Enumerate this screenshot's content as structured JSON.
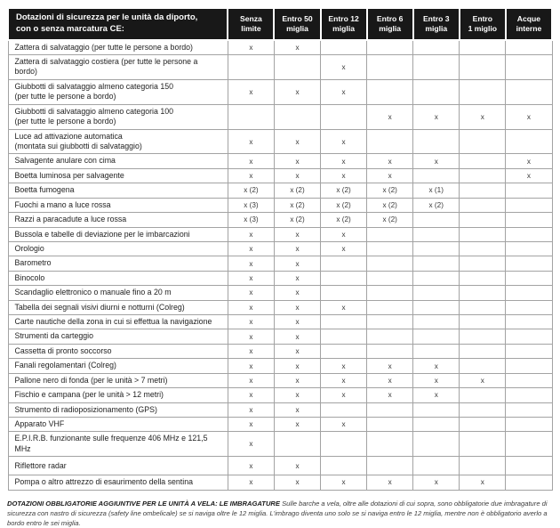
{
  "table": {
    "title_line1": "Dotazioni di sicurezza per le unità da diporto,",
    "title_line2": "con o senza marcatura CE:",
    "columns": [
      {
        "line1": "Senza",
        "line2": "limite"
      },
      {
        "line1": "Entro 50",
        "line2": "miglia"
      },
      {
        "line1": "Entro 12",
        "line2": "miglia"
      },
      {
        "line1": "Entro 6",
        "line2": "miglia"
      },
      {
        "line1": "Entro 3",
        "line2": "miglia"
      },
      {
        "line1": "Entro",
        "line2": "1 miglio"
      },
      {
        "line1": "Acque",
        "line2": "interne"
      }
    ],
    "rows": [
      {
        "label": "Zattera di salvataggio  (per tutte le persone a bordo)",
        "marks": [
          "x",
          "x",
          "",
          "",
          "",
          "",
          ""
        ]
      },
      {
        "label": "Zattera di salvataggio costiera  (per tutte le persone a bordo)",
        "marks": [
          "",
          "",
          "x",
          "",
          "",
          "",
          ""
        ]
      },
      {
        "label": "Giubbotti di salvataggio almeno categoria 150",
        "label2": "(per tutte le persone a bordo)",
        "marks": [
          "x",
          "x",
          "x",
          "",
          "",
          "",
          ""
        ]
      },
      {
        "label": "Giubbotti di salvataggio almeno categoria 100",
        "label2": "(per tutte le persone a bordo)",
        "marks": [
          "",
          "",
          "",
          "x",
          "x",
          "x",
          "x"
        ]
      },
      {
        "label": "Luce ad attivazione automatica",
        "label2": "(montata sui giubbotti di salvataggio)",
        "marks": [
          "x",
          "x",
          "x",
          "",
          "",
          "",
          ""
        ]
      },
      {
        "label": "Salvagente anulare con cima",
        "marks": [
          "x",
          "x",
          "x",
          "x",
          "x",
          "",
          "x"
        ]
      },
      {
        "label": "Boetta luminosa per salvagente",
        "marks": [
          "x",
          "x",
          "x",
          "x",
          "",
          "",
          "x"
        ]
      },
      {
        "label": "Boetta fumogena",
        "marks": [
          "x (2)",
          "x (2)",
          "x (2)",
          "x (2)",
          "x (1)",
          "",
          ""
        ]
      },
      {
        "label": "Fuochi a mano a luce rossa",
        "marks": [
          "x (3)",
          "x (2)",
          "x (2)",
          "x (2)",
          "x (2)",
          "",
          ""
        ]
      },
      {
        "label": "Razzi a paracadute a luce rossa",
        "marks": [
          "x (3)",
          "x (2)",
          "x (2)",
          "x (2)",
          "",
          "",
          ""
        ]
      },
      {
        "label": "Bussola e tabelle di deviazione per le imbarcazioni",
        "marks": [
          "x",
          "x",
          "x",
          "",
          "",
          "",
          ""
        ]
      },
      {
        "label": "Orologio",
        "marks": [
          "x",
          "x",
          "x",
          "",
          "",
          "",
          ""
        ]
      },
      {
        "label": "Barometro",
        "marks": [
          "x",
          "x",
          "",
          "",
          "",
          "",
          ""
        ]
      },
      {
        "label": "Binocolo",
        "marks": [
          "x",
          "x",
          "",
          "",
          "",
          "",
          ""
        ]
      },
      {
        "label": "Scandaglio elettronico o manuale fino a 20 m",
        "marks": [
          "x",
          "x",
          "",
          "",
          "",
          "",
          ""
        ]
      },
      {
        "label": "Tabella dei segnali visivi diurni e notturni (Colreg)",
        "marks": [
          "x",
          "x",
          "x",
          "",
          "",
          "",
          ""
        ]
      },
      {
        "label": "Carte nautiche della zona in cui si effettua la navigazione",
        "marks": [
          "x",
          "x",
          "",
          "",
          "",
          "",
          ""
        ]
      },
      {
        "label": "Strumenti da carteggio",
        "marks": [
          "x",
          "x",
          "",
          "",
          "",
          "",
          ""
        ]
      },
      {
        "label": "Cassetta di pronto soccorso",
        "marks": [
          "x",
          "x",
          "",
          "",
          "",
          "",
          ""
        ]
      },
      {
        "label": "Fanali regolamentari (Colreg)",
        "marks": [
          "x",
          "x",
          "x",
          "x",
          "x",
          "",
          ""
        ]
      },
      {
        "label": "Pallone nero di fonda (per le unità > 7 metri)",
        "marks": [
          "x",
          "x",
          "x",
          "x",
          "x",
          "x",
          ""
        ]
      },
      {
        "label": "Fischio e campana (per le unità > 12 metri)",
        "marks": [
          "x",
          "x",
          "x",
          "x",
          "x",
          "",
          ""
        ]
      },
      {
        "label": "Strumento di radioposizionamento (GPS)",
        "marks": [
          "x",
          "x",
          "",
          "",
          "",
          "",
          ""
        ]
      },
      {
        "label": "Apparato VHF",
        "marks": [
          "x",
          "x",
          "x",
          "",
          "",
          "",
          ""
        ]
      },
      {
        "label": "E.P.I.R.B. funzionante sulle frequenze 406 MHz e 121,5 MHz",
        "marks": [
          "x",
          "",
          "",
          "",
          "",
          "",
          ""
        ]
      },
      {
        "label": "Riflettore radar",
        "tall": true,
        "marks": [
          "x",
          "x",
          "",
          "",
          "",
          "",
          ""
        ]
      },
      {
        "label": "Pompa o altro attrezzo di esaurimento della sentina",
        "marks": [
          "x",
          "x",
          "x",
          "x",
          "x",
          "x",
          ""
        ]
      }
    ]
  },
  "footnote": {
    "bold": "DOTAZIONI OBBLIGATORIE AGGIUNTIVE PER LE UNITÀ A VELA: LE IMBRAGATURE",
    "text": "Sulle barche a vela, oltre alle dotazioni di cui sopra, sono obbligatorie due imbragature di sicurezza con nastro di sicurezza (safety line ombelicale) se si naviga oltre le 12 miglia. L'imbrago diventa uno solo se si naviga entro le 12 miglia, mentre non è obbligatorio averlo a bordo entro le sei miglia."
  },
  "colors": {
    "header_bg": "#181818",
    "header_text": "#ffffff",
    "border": "#a3a3a3",
    "body_text": "#1f1f1f"
  }
}
